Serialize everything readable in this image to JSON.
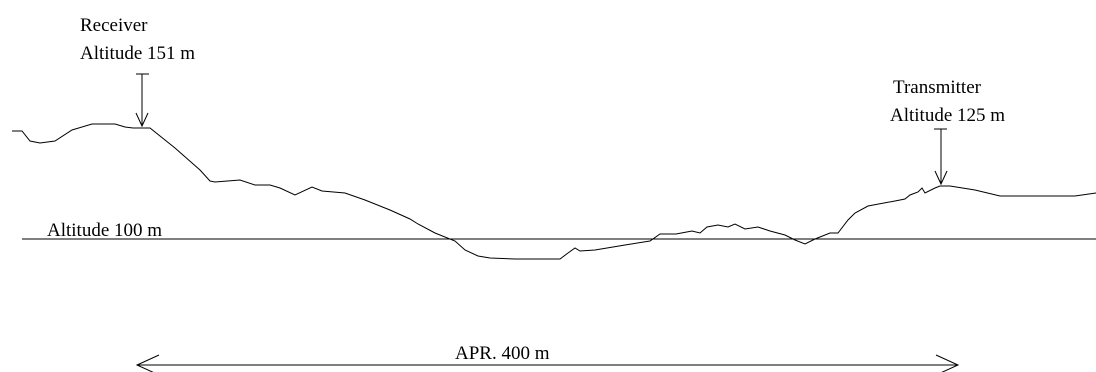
{
  "receiver": {
    "name": "Receiver",
    "altitude": "Altitude 151 m"
  },
  "transmitter": {
    "name": "Transmitter",
    "altitude": "Altitude 125 m"
  },
  "reference_line": {
    "label": "Altitude 100 m"
  },
  "distance": {
    "label": "APR. 400 m"
  },
  "colors": {
    "stroke": "#000000",
    "background": "#ffffff"
  }
}
